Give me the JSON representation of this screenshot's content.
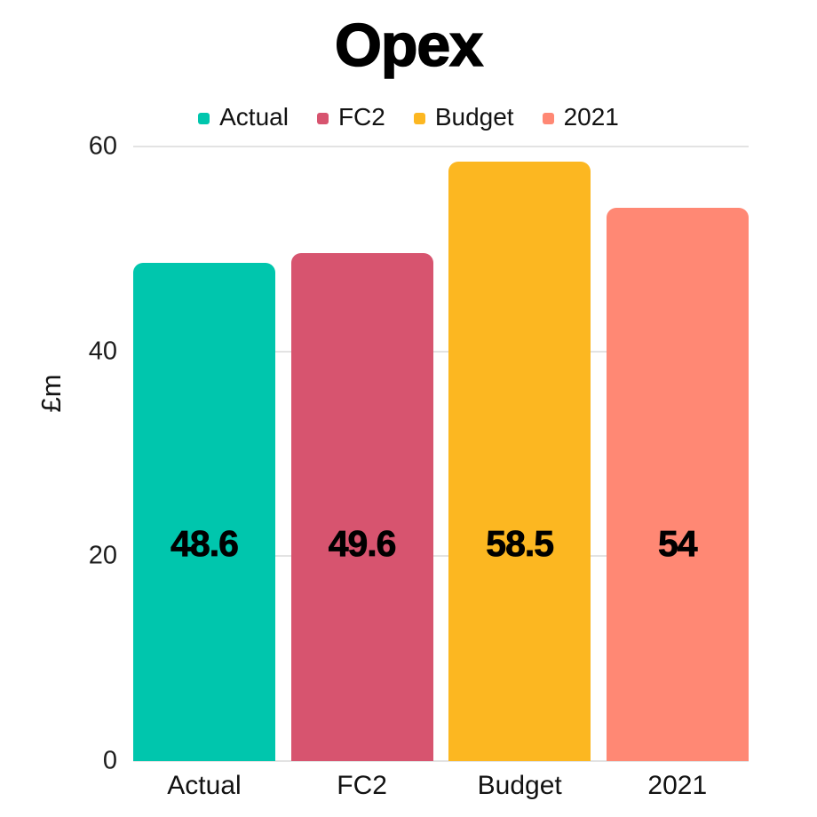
{
  "chart_data": {
    "type": "bar",
    "title": "Opex",
    "xlabel": "",
    "ylabel": "£m",
    "categories": [
      "Actual",
      "FC2",
      "Budget",
      "2021"
    ],
    "values": [
      48.6,
      49.6,
      58.5,
      54
    ],
    "value_labels": [
      "48.6",
      "49.6",
      "58.5",
      "54"
    ],
    "bar_colors": [
      "#00C6AD",
      "#D7546F",
      "#FCB721",
      "#FF8874"
    ],
    "ylim": [
      0,
      60
    ],
    "yticks": [
      0,
      20,
      40,
      60
    ],
    "grid": "horizontal-light-gray",
    "gridline_color": "#E3E3E3",
    "legend": {
      "position": "top-center",
      "entries": [
        {
          "label": "Actual",
          "color": "#00C6AD"
        },
        {
          "label": "FC2",
          "color": "#D7546F"
        },
        {
          "label": "Budget",
          "color": "#FCB721"
        },
        {
          "label": "2021",
          "color": "#FF8874"
        }
      ]
    }
  }
}
